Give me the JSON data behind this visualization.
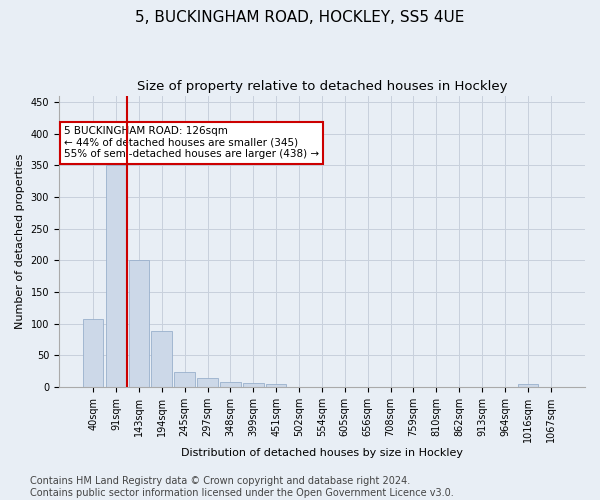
{
  "title": "5, BUCKINGHAM ROAD, HOCKLEY, SS5 4UE",
  "subtitle": "Size of property relative to detached houses in Hockley",
  "xlabel": "Distribution of detached houses by size in Hockley",
  "ylabel": "Number of detached properties",
  "categories": [
    "40sqm",
    "91sqm",
    "143sqm",
    "194sqm",
    "245sqm",
    "297sqm",
    "348sqm",
    "399sqm",
    "451sqm",
    "502sqm",
    "554sqm",
    "605sqm",
    "656sqm",
    "708sqm",
    "759sqm",
    "810sqm",
    "862sqm",
    "913sqm",
    "964sqm",
    "1016sqm",
    "1067sqm"
  ],
  "values": [
    107,
    350,
    200,
    88,
    23,
    14,
    8,
    6,
    4,
    0,
    0,
    0,
    0,
    0,
    0,
    0,
    0,
    0,
    0,
    5,
    0
  ],
  "bar_color": "#ccd8e8",
  "bar_edgecolor": "#99b0cc",
  "grid_color": "#c8d0dc",
  "background_color": "#e8eef5",
  "vline_x": 1.5,
  "vline_color": "#cc0000",
  "annotation_text": "5 BUCKINGHAM ROAD: 126sqm\n← 44% of detached houses are smaller (345)\n55% of semi-detached houses are larger (438) →",
  "annotation_box_color": "#ffffff",
  "annotation_box_edgecolor": "#cc0000",
  "ylim": [
    0,
    460
  ],
  "yticks": [
    0,
    50,
    100,
    150,
    200,
    250,
    300,
    350,
    400,
    450
  ],
  "footer": "Contains HM Land Registry data © Crown copyright and database right 2024.\nContains public sector information licensed under the Open Government Licence v3.0.",
  "title_fontsize": 11,
  "subtitle_fontsize": 9.5,
  "axis_label_fontsize": 8,
  "tick_fontsize": 7,
  "footer_fontsize": 7
}
